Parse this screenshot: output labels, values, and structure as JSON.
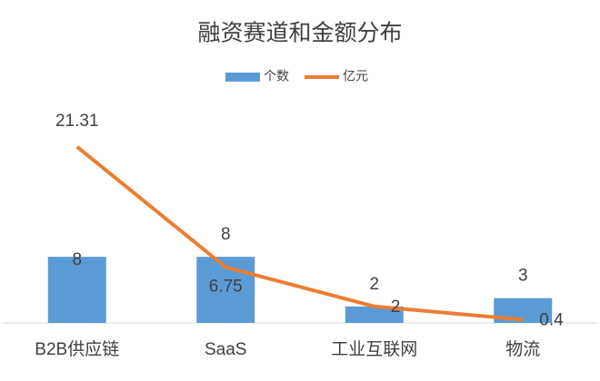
{
  "chart_data": {
    "type": "combo",
    "title": "融资赛道和金额分布",
    "categories": [
      "B2B供应链",
      "SaaS",
      "工业互联网",
      "物流"
    ],
    "series": [
      {
        "name": "个数",
        "type": "bar",
        "color": "#5b9bd5",
        "values": [
          8,
          8,
          2,
          3
        ]
      },
      {
        "name": "亿元",
        "type": "line",
        "color": "#ed7d31",
        "values": [
          21.31,
          6.75,
          2,
          0.4
        ]
      }
    ],
    "ylim": [
      0,
      27
    ],
    "legend": "top"
  }
}
